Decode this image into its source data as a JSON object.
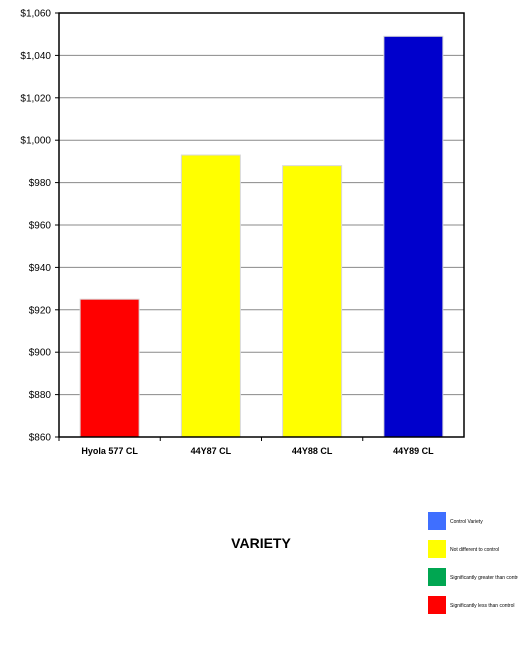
{
  "chart_data": {
    "type": "bar",
    "title": "",
    "xlabel": "VARIETY",
    "ylabel": "",
    "categories": [
      "Hyola 577 CL",
      "44Y87 CL",
      "44Y88 CL",
      "44Y89 CL"
    ],
    "values": [
      925,
      993,
      988,
      1049
    ],
    "bar_colors": [
      "#ff0000",
      "#ffff00",
      "#ffff00",
      "#0000cc"
    ],
    "ylim": [
      860,
      1060
    ],
    "yticks": [
      860,
      880,
      900,
      920,
      940,
      960,
      980,
      1000,
      1020,
      1040,
      1060
    ],
    "ytick_labels": [
      "$860",
      "$880",
      "$900",
      "$920",
      "$940",
      "$960",
      "$980",
      "$1,000",
      "$1,020",
      "$1,040",
      "$1,060"
    ],
    "grid": true,
    "legend_position": "bottom-right",
    "legend": [
      {
        "label": "Control Variety",
        "color": "#3f6fff"
      },
      {
        "label": "Not different to control",
        "color": "#ffff00"
      },
      {
        "label": "Significantly greater than control",
        "color": "#00a651"
      },
      {
        "label": "Significantly less than control",
        "color": "#ff0000"
      }
    ]
  }
}
